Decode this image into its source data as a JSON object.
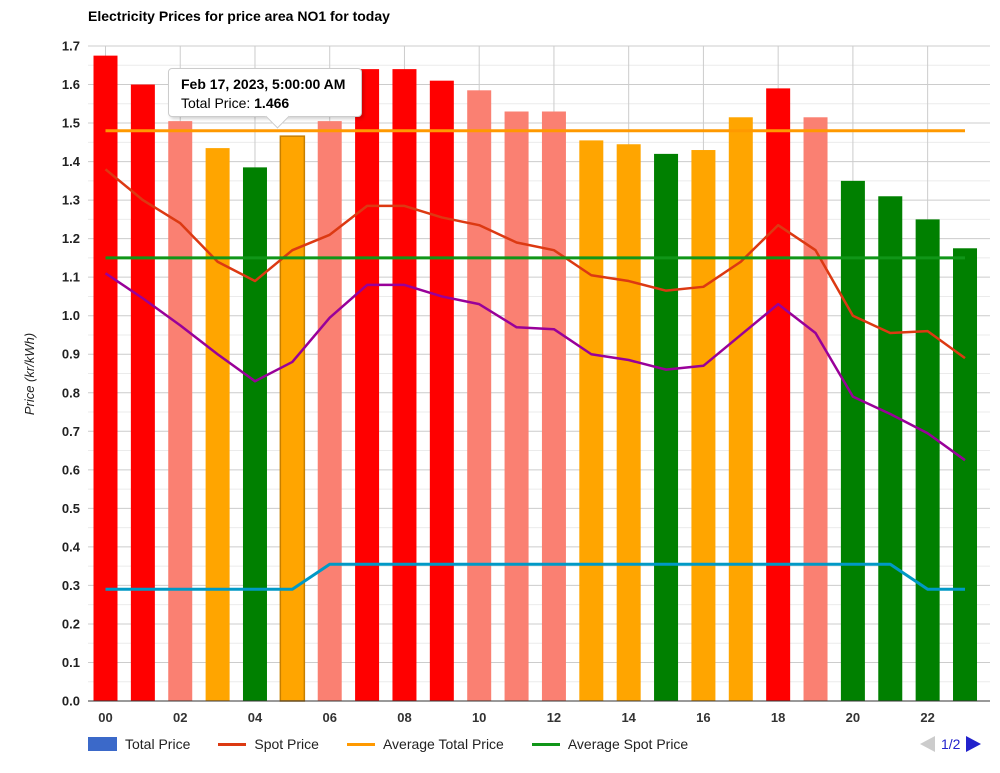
{
  "title": "Electricity Prices for price area NO1 for today",
  "y_axis": {
    "title": "Price (kr/kWh)",
    "tick_labels": [
      "0.0",
      "0.1",
      "0.2",
      "0.3",
      "0.4",
      "0.5",
      "0.6",
      "0.7",
      "0.8",
      "0.9",
      "1.0",
      "1.1",
      "1.2",
      "1.3",
      "1.4",
      "1.5",
      "1.6",
      "1.7"
    ]
  },
  "x_axis": {
    "tick_labels": [
      "00",
      "02",
      "04",
      "06",
      "08",
      "10",
      "12",
      "14",
      "16",
      "18",
      "20",
      "22"
    ]
  },
  "tooltip": {
    "date": "Feb 17, 2023, 5:00:00 AM",
    "price_label": "Total Price:",
    "price_value": "1.466"
  },
  "legend": {
    "items": [
      {
        "label": "Total Price",
        "swatch": "bar",
        "color": "#3b69c9"
      },
      {
        "label": "Spot Price",
        "swatch": "line",
        "color": "#dc3912"
      },
      {
        "label": "Average Total Price",
        "swatch": "line",
        "color": "#ff9900"
      },
      {
        "label": "Average Spot Price",
        "swatch": "line",
        "color": "#109618"
      }
    ],
    "pagination": {
      "label": "1/2",
      "prev_enabled": false,
      "next_enabled": true
    }
  },
  "chart_data": {
    "type": "bar",
    "subtype": "bar-line-combo",
    "title": "Electricity Prices for price area NO1 for today",
    "xlabel": "",
    "ylabel": "Price (kr/kWh)",
    "ylim": [
      0,
      1.7
    ],
    "grid": "major 0.1 / minor 0.05, vertical every 2 hours",
    "legend_position": "bottom",
    "hours": [
      "00",
      "01",
      "02",
      "03",
      "04",
      "05",
      "06",
      "07",
      "08",
      "09",
      "10",
      "11",
      "12",
      "13",
      "14",
      "15",
      "16",
      "17",
      "18",
      "19",
      "20",
      "21",
      "22",
      "23"
    ],
    "bar_series": {
      "name": "Total Price",
      "values": [
        1.675,
        1.6,
        1.505,
        1.435,
        1.385,
        1.466,
        1.505,
        1.64,
        1.64,
        1.61,
        1.585,
        1.53,
        1.53,
        1.455,
        1.445,
        1.42,
        1.43,
        1.515,
        1.59,
        1.515,
        1.35,
        1.31,
        1.25,
        1.175
      ],
      "colors": [
        "#ff0000",
        "#ff0000",
        "#fa8072",
        "#ffa500",
        "#008000",
        "#ffa500",
        "#fa8072",
        "#ff0000",
        "#ff0000",
        "#ff0000",
        "#fa8072",
        "#fa8072",
        "#fa8072",
        "#ffa500",
        "#ffa500",
        "#008000",
        "#ffa500",
        "#ffa500",
        "#ff0000",
        "#fa8072",
        "#008000",
        "#008000",
        "#008000",
        "#008000"
      ],
      "highlighted_hour_index": 5,
      "highlight_stroke": "#c77f00"
    },
    "line_series": [
      {
        "name": "Spot Price",
        "color": "#dc3912",
        "width": 2.5,
        "values": [
          1.38,
          1.3,
          1.24,
          1.14,
          1.09,
          1.17,
          1.21,
          1.285,
          1.285,
          1.255,
          1.235,
          1.19,
          1.17,
          1.105,
          1.09,
          1.065,
          1.075,
          1.14,
          1.235,
          1.17,
          1.0,
          0.955,
          0.96,
          0.89
        ]
      },
      {
        "name": "Average Total Price",
        "color": "#ff9900",
        "width": 3,
        "constant": 1.48
      },
      {
        "name": "Average Spot Price",
        "color": "#109618",
        "width": 3,
        "constant": 1.15
      },
      {
        "name": "",
        "color": "#990099",
        "width": 2.5,
        "values": [
          1.11,
          1.045,
          0.975,
          0.9,
          0.83,
          0.88,
          0.995,
          1.08,
          1.08,
          1.05,
          1.03,
          0.97,
          0.965,
          0.9,
          0.885,
          0.86,
          0.87,
          0.95,
          1.03,
          0.955,
          0.79,
          0.745,
          0.695,
          0.625
        ]
      },
      {
        "name": "",
        "color": "#0099c6",
        "width": 3,
        "values": [
          0.29,
          0.29,
          0.29,
          0.29,
          0.29,
          0.29,
          0.355,
          0.355,
          0.355,
          0.355,
          0.355,
          0.355,
          0.355,
          0.355,
          0.355,
          0.355,
          0.355,
          0.355,
          0.355,
          0.355,
          0.355,
          0.355,
          0.29,
          0.29
        ]
      }
    ]
  }
}
